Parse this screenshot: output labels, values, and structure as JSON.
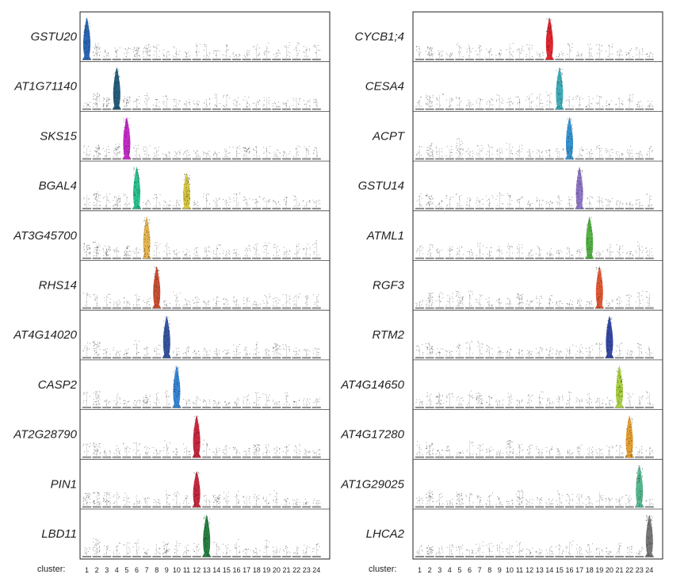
{
  "chart_data": {
    "type": "violin",
    "x_axis_title": "cluster:",
    "clusters": [
      "1",
      "2",
      "3",
      "4",
      "5",
      "6",
      "7",
      "8",
      "9",
      "10",
      "11",
      "12",
      "13",
      "14",
      "15",
      "16",
      "17",
      "18",
      "19",
      "20",
      "21",
      "22",
      "23",
      "24"
    ],
    "y_range_per_gene": [
      0,
      1
    ],
    "value_meaning": "relative expression level (0 = none, 1 = panel maximum)",
    "colors": {
      "1": "#1f5fb3",
      "4": "#1a5577",
      "5": "#c21fc6",
      "6": "#1fbf8a",
      "7": "#e2b24a",
      "8": "#c8482a",
      "9": "#2d4e9c",
      "10": "#2c7fd3",
      "11": "#d4c236",
      "12": "#c81d35",
      "13": "#1e7a3a",
      "14": "#e01c24",
      "15": "#36a9b5",
      "16": "#2c8fd0",
      "17": "#8a6fc4",
      "18": "#4cae3c",
      "19": "#e0512a",
      "20": "#2b3fa0",
      "21": "#a6cf3a",
      "22": "#e69a25",
      "23": "#4fb58a",
      "24": "#707070"
    },
    "panels": [
      {
        "name": "left",
        "genes": [
          {
            "gene": "GSTU20",
            "highlight": {
              "1": 1.0
            },
            "background": {
              "2": 0.35,
              "7": 0.3,
              "6": 0.25
            }
          },
          {
            "gene": "AT1G71140",
            "highlight": {
              "4": 1.0
            },
            "background": {
              "2": 0.35,
              "3": 0.25,
              "5": 0.25
            }
          },
          {
            "gene": "SKS15",
            "highlight": {
              "5": 1.0
            },
            "background": {
              "2": 0.3,
              "4": 0.3,
              "17": 0.25
            }
          },
          {
            "gene": "BGAL4",
            "highlight": {
              "6": 1.0,
              "11": 0.85
            },
            "background": {
              "2": 0.35,
              "4": 0.25
            }
          },
          {
            "gene": "AT3G45700",
            "highlight": {
              "7": 1.0
            },
            "background": {
              "1": 0.3,
              "2": 0.35,
              "3": 0.25,
              "5": 0.25
            }
          },
          {
            "gene": "RHS14",
            "highlight": {
              "8": 1.0
            },
            "background": {}
          },
          {
            "gene": "AT4G14020",
            "highlight": {
              "9": 1.0
            },
            "background": {
              "2": 0.35,
              "20": 0.3
            }
          },
          {
            "gene": "CASP2",
            "highlight": {
              "10": 1.0
            },
            "background": {
              "2": 0.35,
              "7": 0.25
            }
          },
          {
            "gene": "AT2G28790",
            "highlight": {
              "12": 1.0
            },
            "background": {
              "2": 0.3,
              "18": 0.25
            }
          },
          {
            "gene": "PIN1",
            "highlight": {
              "12": 0.85
            },
            "background": {
              "1": 0.3,
              "2": 0.3,
              "3": 0.3,
              "14": 0.25
            }
          },
          {
            "gene": "LBD11",
            "highlight": {
              "13": 1.0
            },
            "background": {
              "2": 0.45,
              "9": 0.3
            }
          }
        ]
      },
      {
        "name": "right",
        "genes": [
          {
            "gene": "CYCB1;4",
            "highlight": {
              "14": 1.0
            },
            "background": {
              "2": 0.25
            }
          },
          {
            "gene": "CESA4",
            "highlight": {
              "15": 1.0
            },
            "background": {
              "2": 0.3
            }
          },
          {
            "gene": "ACPT",
            "highlight": {
              "16": 1.0
            },
            "background": {
              "2": 0.35,
              "5": 0.45
            }
          },
          {
            "gene": "GSTU14",
            "highlight": {
              "17": 1.0
            },
            "background": {
              "2": 0.3
            }
          },
          {
            "gene": "ATML1",
            "highlight": {
              "18": 1.0
            },
            "background": {}
          },
          {
            "gene": "RGF3",
            "highlight": {
              "19": 1.0
            },
            "background": {
              "2": 0.35,
              "5": 0.35,
              "11": 0.3
            }
          },
          {
            "gene": "RTM2",
            "highlight": {
              "20": 1.0
            },
            "background": {
              "2": 0.3
            }
          },
          {
            "gene": "AT4G14650",
            "highlight": {
              "21": 1.0
            },
            "background": {
              "3": 0.3,
              "7": 0.3
            }
          },
          {
            "gene": "AT4G17280",
            "highlight": {
              "22": 1.0
            },
            "background": {
              "2": 0.3,
              "10": 0.35
            }
          },
          {
            "gene": "AT1G29025",
            "highlight": {
              "23": 1.0
            },
            "background": {
              "2": 0.35,
              "5": 0.3,
              "11": 0.35
            }
          },
          {
            "gene": "LHCA2",
            "highlight": {
              "24": 1.0
            },
            "background": {
              "2": 0.2
            }
          }
        ]
      }
    ]
  }
}
